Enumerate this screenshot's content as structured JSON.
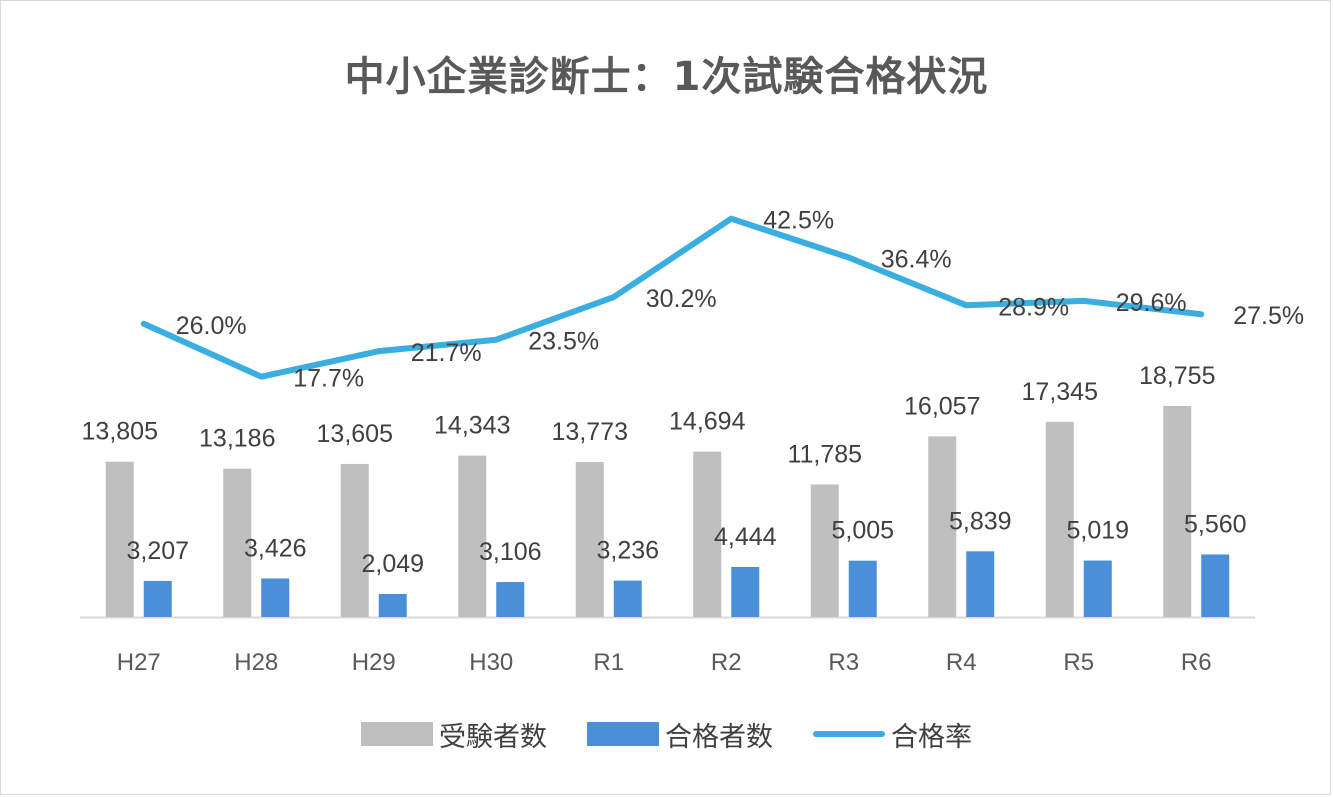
{
  "chart_data": {
    "type": "bar",
    "title": "中小企業診断士：1次試験合格状況",
    "categories": [
      "H27",
      "H28",
      "H29",
      "H30",
      "R1",
      "R2",
      "R3",
      "R4",
      "R5",
      "R6"
    ],
    "series": [
      {
        "name": "受験者数",
        "kind": "bar",
        "color": "#bfbfbf",
        "values": [
          13805,
          13186,
          13605,
          14343,
          13773,
          14694,
          11785,
          16057,
          17345,
          18755
        ],
        "labels": [
          "13,805",
          "13,186",
          "13,605",
          "14,343",
          "13,773",
          "14,694",
          "11,785",
          "16,057",
          "17,345",
          "18,755"
        ]
      },
      {
        "name": "合格者数",
        "kind": "bar",
        "color": "#4a90d9",
        "values": [
          3207,
          3426,
          2049,
          3106,
          3236,
          4444,
          5005,
          5839,
          5019,
          5560
        ],
        "labels": [
          "3,207",
          "3,426",
          "2,049",
          "3,106",
          "3,236",
          "4,444",
          "5,005",
          "5,839",
          "5,019",
          "5,560"
        ]
      },
      {
        "name": "合格率",
        "kind": "line",
        "color": "#3aaee0",
        "values": [
          26.0,
          17.7,
          21.7,
          23.5,
          30.2,
          42.5,
          36.4,
          28.9,
          29.6,
          27.5
        ],
        "labels": [
          "26.0%",
          "17.7%",
          "21.7%",
          "23.5%",
          "30.2%",
          "42.5%",
          "36.4%",
          "28.9%",
          "29.6%",
          "27.5%"
        ]
      }
    ],
    "legend_position": "bottom",
    "grid": false
  }
}
